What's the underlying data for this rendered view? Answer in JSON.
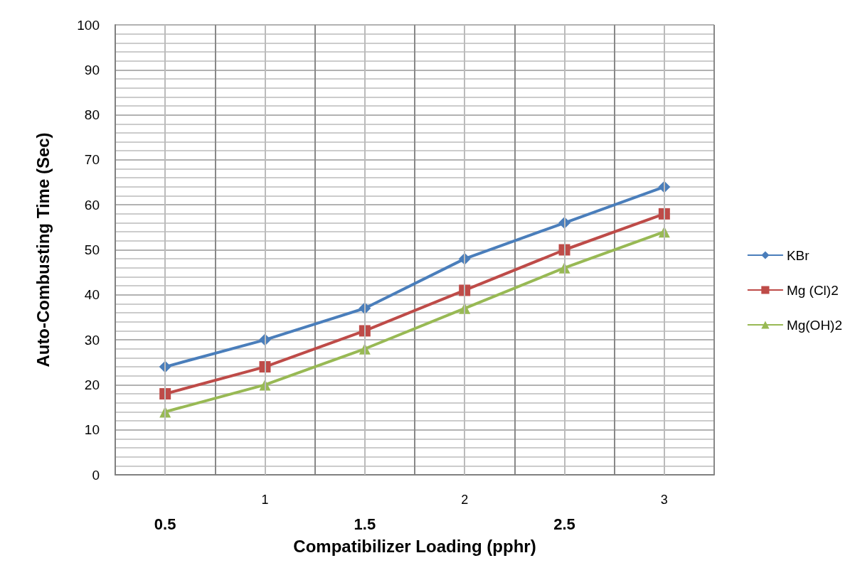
{
  "chart_data": {
    "type": "line",
    "xlabel": "Compatibilizer Loading (pphr)",
    "ylabel": "Auto-Combusting Time (Sec)",
    "categories": [
      "0.5",
      "1",
      "1.5",
      "2",
      "2.5",
      "3"
    ],
    "series": [
      {
        "name": "KBr",
        "color": "#4a7ebb",
        "marker": "diamond",
        "values": [
          24,
          30,
          37,
          48,
          56,
          64
        ]
      },
      {
        "name": "Mg (Cl)2",
        "color": "#be4b48",
        "marker": "square",
        "values": [
          18,
          24,
          32,
          41,
          50,
          58
        ]
      },
      {
        "name": "Mg(OH)2",
        "color": "#98b954",
        "marker": "triangle",
        "values": [
          14,
          20,
          28,
          37,
          46,
          54
        ]
      }
    ],
    "ylim": [
      0,
      100
    ],
    "yticks": [
      0,
      10,
      20,
      30,
      40,
      50,
      60,
      70,
      80,
      90,
      100
    ],
    "grid": true,
    "legend": "right",
    "line_style": "solid"
  }
}
